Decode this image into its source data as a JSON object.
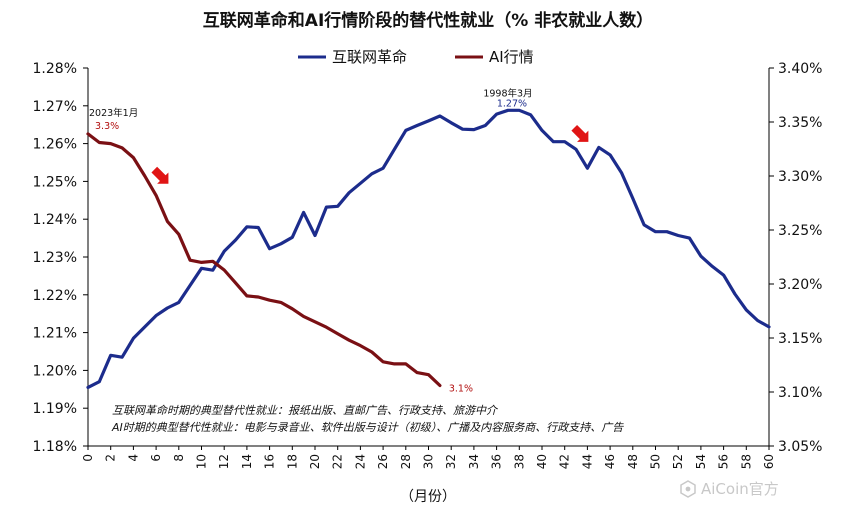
{
  "chart_data": {
    "type": "line",
    "title": "互联网革命和AI行情阶段的替代性就业（% 非农就业人数）",
    "xlabel": "（月份）",
    "x_ticks": [
      "0",
      "2",
      "4",
      "6",
      "8",
      "10",
      "12",
      "14",
      "16",
      "18",
      "20",
      "22",
      "24",
      "26",
      "28",
      "30",
      "32",
      "34",
      "36",
      "38",
      "40",
      "42",
      "44",
      "46",
      "48",
      "50",
      "52",
      "54",
      "56",
      "58",
      "60"
    ],
    "xlim": [
      0,
      60
    ],
    "y_left": {
      "ticks": [
        "1.18%",
        "1.19%",
        "1.20%",
        "1.21%",
        "1.22%",
        "1.23%",
        "1.24%",
        "1.25%",
        "1.26%",
        "1.27%",
        "1.28%"
      ],
      "range": [
        1.18,
        1.28
      ]
    },
    "y_right": {
      "ticks": [
        "3.05%",
        "3.10%",
        "3.15%",
        "3.20%",
        "3.25%",
        "3.30%",
        "3.35%",
        "3.40%"
      ],
      "range": [
        3.05,
        3.4
      ]
    },
    "legend_position": "top-center",
    "series": [
      {
        "name": "互联网革命",
        "axis": "left",
        "color": "#1c2c8c",
        "points": [
          [
            0,
            1.1955
          ],
          [
            1,
            1.197
          ],
          [
            2,
            1.204
          ],
          [
            3,
            1.2035
          ],
          [
            4,
            1.2085
          ],
          [
            5,
            1.2115
          ],
          [
            6,
            1.2145
          ],
          [
            7,
            1.2165
          ],
          [
            8,
            1.218
          ],
          [
            9,
            1.2225
          ],
          [
            10,
            1.227
          ],
          [
            11,
            1.2265
          ],
          [
            12,
            1.2315
          ],
          [
            13,
            1.2345
          ],
          [
            14,
            1.238
          ],
          [
            15,
            1.2378
          ],
          [
            16,
            1.2322
          ],
          [
            17,
            1.2335
          ],
          [
            18,
            1.2352
          ],
          [
            19,
            1.2418
          ],
          [
            20,
            1.2357
          ],
          [
            21,
            1.2432
          ],
          [
            22,
            1.2434
          ],
          [
            23,
            1.247
          ],
          [
            24,
            1.2495
          ],
          [
            25,
            1.252
          ],
          [
            26,
            1.2535
          ],
          [
            27,
            1.2585
          ],
          [
            28,
            1.2635
          ],
          [
            29,
            1.2648
          ],
          [
            30,
            1.266
          ],
          [
            31,
            1.2673
          ],
          [
            32,
            1.2655
          ],
          [
            33,
            1.2638
          ],
          [
            34,
            1.2637
          ],
          [
            35,
            1.2648
          ],
          [
            36,
            1.2678
          ],
          [
            37,
            1.2688
          ],
          [
            38,
            1.2688
          ],
          [
            39,
            1.2676
          ],
          [
            40,
            1.2635
          ],
          [
            41,
            1.2605
          ],
          [
            42,
            1.2605
          ],
          [
            43,
            1.2585
          ],
          [
            44,
            1.2535
          ],
          [
            45,
            1.259
          ],
          [
            46,
            1.257
          ],
          [
            47,
            1.2523
          ],
          [
            48,
            1.2455
          ],
          [
            49,
            1.2385
          ],
          [
            50,
            1.2367
          ],
          [
            51,
            1.2367
          ],
          [
            52,
            1.2357
          ],
          [
            53,
            1.235
          ],
          [
            54,
            1.2302
          ],
          [
            55,
            1.2275
          ],
          [
            56,
            1.2252
          ],
          [
            57,
            1.2202
          ],
          [
            58,
            1.216
          ],
          [
            59,
            1.2132
          ],
          [
            60,
            1.2115
          ]
        ]
      },
      {
        "name": "AI行情",
        "axis": "right",
        "color": "#7a1014",
        "points": [
          [
            0,
            3.339
          ],
          [
            1,
            3.331
          ],
          [
            2,
            3.33
          ],
          [
            3,
            3.326
          ],
          [
            4,
            3.317
          ],
          [
            5,
            3.3
          ],
          [
            6,
            3.282
          ],
          [
            7,
            3.258
          ],
          [
            8,
            3.246
          ],
          [
            9,
            3.222
          ],
          [
            10,
            3.22
          ],
          [
            11,
            3.221
          ],
          [
            12,
            3.213
          ],
          [
            13,
            3.201
          ],
          [
            14,
            3.189
          ],
          [
            15,
            3.188
          ],
          [
            16,
            3.185
          ],
          [
            17,
            3.183
          ],
          [
            18,
            3.177
          ],
          [
            19,
            3.17
          ],
          [
            20,
            3.165
          ],
          [
            21,
            3.16
          ],
          [
            22,
            3.154
          ],
          [
            23,
            3.148
          ],
          [
            24,
            3.143
          ],
          [
            25,
            3.137
          ],
          [
            26,
            3.128
          ],
          [
            27,
            3.126
          ],
          [
            28,
            3.126
          ],
          [
            29,
            3.118
          ],
          [
            30,
            3.116
          ],
          [
            31,
            3.106
          ]
        ]
      }
    ],
    "annotations": [
      {
        "text": "2023年1月",
        "role": "label",
        "series": "AI行情"
      },
      {
        "text": "3.3%",
        "role": "value",
        "series": "AI行情"
      },
      {
        "text": "3.1%",
        "role": "value",
        "series": "AI行情"
      },
      {
        "text": "1998年3月",
        "role": "label",
        "series": "互联网革命"
      },
      {
        "text": "1.27%",
        "role": "value",
        "series": "互联网革命"
      }
    ],
    "notes": [
      "互联网革命时期的典型替代性就业：报纸出版、直邮广告、行政支持、旅游中介",
      "AI时期的典型替代性就业：电影与录音业、软件出版与设计（初级）、广播及内容服务商、行政支持、广告"
    ],
    "arrow_color": "#e01515"
  },
  "watermark": "AiCoin官方"
}
